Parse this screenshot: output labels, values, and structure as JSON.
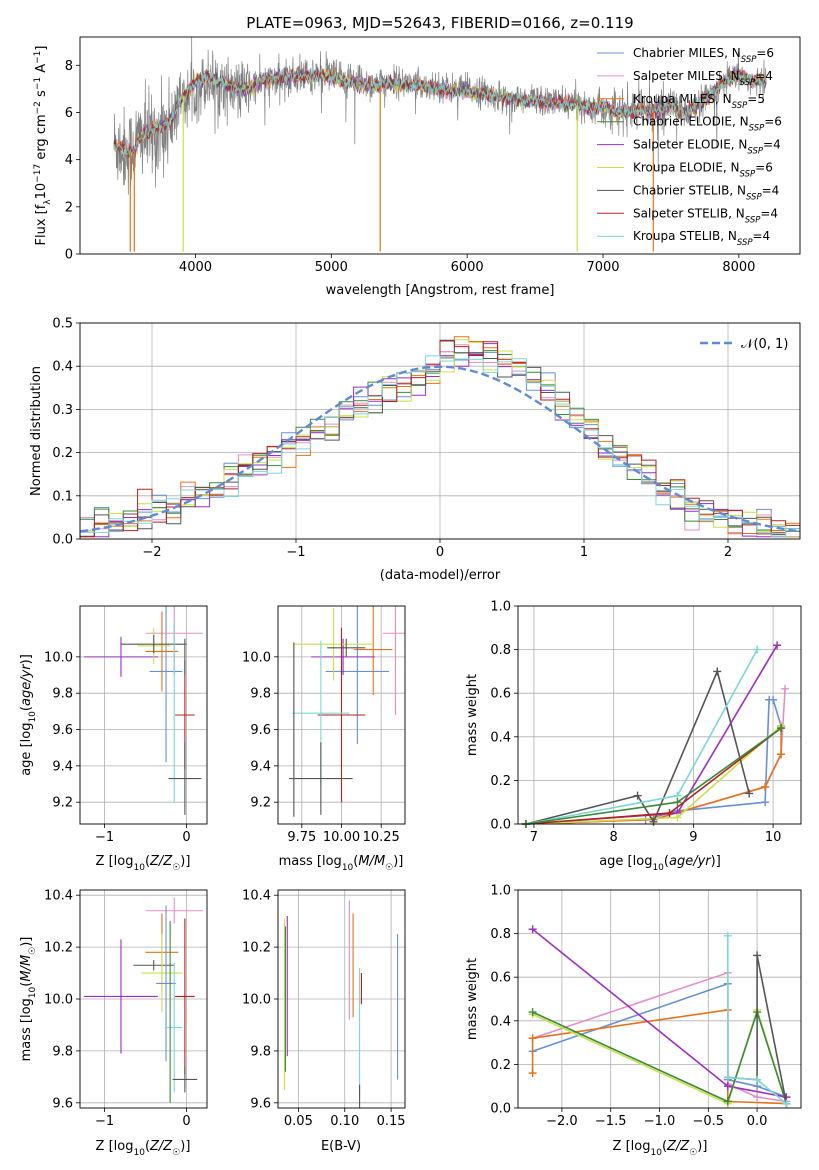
{
  "figure_title": "PLATE=0963, MJD=52643, FIBERID=0166, z=0.119",
  "colors": {
    "Chabrier MILES": "#6a8fd6",
    "Salpeter MILES": "#e58fc6",
    "Kroupa MILES": "#e3731a",
    "Chabrier ELODIE": "#3a8a3a",
    "Salpeter ELODIE": "#9b2fc2",
    "Kroupa ELODIE": "#c9e04a",
    "Chabrier STELIB": "#555555",
    "Salpeter STELIB": "#b22222",
    "Kroupa STELIB": "#7dd6d6"
  },
  "chart_data": [
    {
      "id": "spectrum",
      "type": "line",
      "title": "PLATE=0963, MJD=52643, FIBERID=0166, z=0.119",
      "xlabel": "wavelength [Angstrom, rest frame]",
      "ylabel": "Flux [f_λ 10^-17 erg cm^-2 s^-1 A^-1]",
      "xlim": [
        3150,
        8450
      ],
      "ylim": [
        0,
        9.2
      ],
      "xticks": [
        4000,
        5000,
        6000,
        7000,
        8000
      ],
      "yticks": [
        0,
        2,
        4,
        6,
        8
      ],
      "grid": false,
      "legend_position": "right",
      "legend": [
        {
          "pre": "Chabrier MILES, N",
          "post": "=6"
        },
        {
          "pre": "Salpeter MILES, N",
          "post": "=4"
        },
        {
          "pre": "Kroupa MILES, N",
          "post": "=5"
        },
        {
          "pre": "Chabrier ELODIE, N",
          "post": "=6"
        },
        {
          "pre": "Salpeter ELODIE, N",
          "post": "=4"
        },
        {
          "pre": "Kroupa ELODIE, N",
          "post": "=6"
        },
        {
          "pre": "Chabrier STELIB, N",
          "post": "=4"
        },
        {
          "pre": "Salpeter STELIB, N",
          "post": "=4"
        },
        {
          "pre": "Kroupa STELIB, N",
          "post": "=4"
        }
      ],
      "data_x": [
        3400,
        3450,
        3500,
        3550,
        3600,
        3700,
        3800,
        3900,
        4000,
        4100,
        4200,
        4300,
        4400,
        4500,
        4600,
        4700,
        4800,
        4900,
        5000,
        5100,
        5200,
        5300,
        5400,
        5500,
        5600,
        5700,
        5800,
        5900,
        6000,
        6100,
        6200,
        6300,
        6400,
        6500,
        6600,
        6700,
        6800,
        6900,
        7000,
        7100,
        7200,
        7300,
        7400,
        7500,
        7600,
        7700,
        7800,
        7900,
        8000,
        8100,
        8200
      ],
      "data_y": [
        4.7,
        4.5,
        4.3,
        4.6,
        5.0,
        5.0,
        5.5,
        6.5,
        7.0,
        7.4,
        7.2,
        6.9,
        7.0,
        7.3,
        7.3,
        7.4,
        7.6,
        7.5,
        7.6,
        7.3,
        7.4,
        7.2,
        7.3,
        7.3,
        7.2,
        7.2,
        7.1,
        7.0,
        7.0,
        6.9,
        6.7,
        6.6,
        6.5,
        6.6,
        6.5,
        6.4,
        6.4,
        6.2,
        6.3,
        6.0,
        6.1,
        6.2,
        6.1,
        6.4,
        6.0,
        6.2,
        6.8,
        7.3,
        7.6,
        7.2,
        7.5
      ],
      "model_y": [
        4.6,
        4.5,
        4.3,
        4.4,
        5.0,
        5.3,
        5.5,
        6.6,
        7.3,
        7.5,
        7.3,
        7.0,
        7.0,
        7.4,
        7.5,
        7.6,
        7.5,
        7.6,
        7.5,
        7.3,
        7.2,
        7.1,
        7.2,
        7.2,
        7.1,
        7.1,
        7.0,
        6.9,
        6.9,
        6.8,
        6.7,
        6.6,
        6.5,
        6.5,
        6.4,
        6.4,
        6.3,
        6.2,
        6.3,
        6.0,
        6.0,
        6.1,
        6.1,
        6.3,
        6.0,
        6.3,
        6.8,
        7.3,
        7.6,
        7.3,
        7.4
      ]
    },
    {
      "id": "residuals",
      "type": "histogram",
      "xlabel": "(data-model)/error",
      "ylabel": "Normed distribution",
      "xlim": [
        -2.5,
        2.5
      ],
      "ylim": [
        0,
        0.5
      ],
      "xticks": [
        -2,
        -1,
        0,
        1,
        2
      ],
      "yticks": [
        0,
        0.1,
        0.2,
        0.3,
        0.4,
        0.5
      ],
      "grid": true,
      "legend": "𝒩(0, 1)",
      "legend_position": "top-right"
    },
    {
      "id": "age_Z",
      "type": "errorbar",
      "xlabel": "Z [log10(Z/Z☉)]",
      "ylabel": "age [log10(age/yr)]",
      "xlim": [
        -1.3,
        0.25
      ],
      "ylim": [
        9.08,
        10.28
      ],
      "xticks": [
        -1,
        0
      ],
      "yticks": [
        9.2,
        9.4,
        9.6,
        9.8,
        10.0
      ],
      "grid": true,
      "points": [
        {
          "s": "Chabrier MILES",
          "x": -0.25,
          "xe": 0.2,
          "y": 9.92,
          "ye": 0.5
        },
        {
          "s": "Salpeter MILES",
          "x": -0.15,
          "xe": 0.35,
          "y": 10.13,
          "ye": 0.23
        },
        {
          "s": "Kroupa MILES",
          "x": -0.3,
          "xe": 0.2,
          "y": 10.03,
          "ye": 0.22
        },
        {
          "s": "Salpeter ELODIE",
          "x": -0.8,
          "xe": 0.45,
          "y": 10.0,
          "ye": 0.11
        },
        {
          "s": "Kroupa ELODIE",
          "x": -0.4,
          "xe": 0.2,
          "y": 10.06,
          "ye": 0.1
        },
        {
          "s": "Chabrier STELIB",
          "x": -0.4,
          "xe": 0.4,
          "y": 10.07,
          "ye": 0.05
        },
        {
          "s": "Salpeter STELIB",
          "x": -0.02,
          "xe": 0.12,
          "y": 9.68,
          "ye": 0.3
        },
        {
          "s": "Kroupa STELIB",
          "x": -0.15,
          "xe": 0.0,
          "y": 9.7,
          "ye": 0.5
        },
        {
          "s": "Chabrier STELIB",
          "x": -0.02,
          "xe": 0.2,
          "y": 9.33,
          "ye": 0.2
        },
        {
          "s": "Chabrier STELIB",
          "x": -0.02,
          "xe": 0.0,
          "y": 10.0,
          "ye": 0.1
        }
      ]
    },
    {
      "id": "age_mass",
      "type": "errorbar",
      "xlabel": "mass [log10(M/M☉)]",
      "ylabel": "",
      "xlim": [
        9.6,
        10.4
      ],
      "ylim": [
        9.08,
        10.28
      ],
      "xticks": [
        9.75,
        10.0,
        10.25
      ],
      "yticks": [
        9.2,
        9.4,
        9.6,
        9.8,
        10.0
      ],
      "grid": true,
      "points": [
        {
          "s": "Chabrier MILES",
          "x": 10.1,
          "xe": 0.2,
          "y": 9.92,
          "ye": 0.4
        },
        {
          "s": "Salpeter MILES",
          "x": 10.34,
          "xe": 0.08,
          "y": 10.13,
          "ye": 0.45
        },
        {
          "s": "Kroupa MILES",
          "x": 10.2,
          "xe": 0.12,
          "y": 10.04,
          "ye": 0.25
        },
        {
          "s": "Salpeter ELODIE",
          "x": 10.01,
          "xe": 0.2,
          "y": 10.0,
          "ye": 0.1
        },
        {
          "s": "Kroupa ELODIE",
          "x": 9.95,
          "xe": 0.25,
          "y": 10.07,
          "ye": 0.2
        },
        {
          "s": "Chabrier STELIB",
          "x": 10.03,
          "xe": 0.12,
          "y": 10.05,
          "ye": 0.05
        },
        {
          "s": "Salpeter STELIB",
          "x": 10.0,
          "xe": 0.15,
          "y": 9.68,
          "ye": 0.48
        },
        {
          "s": "Kroupa STELIB",
          "x": 9.87,
          "xe": 0.18,
          "y": 9.69,
          "ye": 0.4
        },
        {
          "s": "Chabrier STELIB",
          "x": 9.87,
          "xe": 0.2,
          "y": 9.33,
          "ye": 0.2
        },
        {
          "s": "Chabrier STELIB",
          "x": 9.7,
          "xe": 0.0,
          "y": 9.6,
          "ye": 0.48
        }
      ]
    },
    {
      "id": "weight_age",
      "type": "line",
      "xlabel": "age [log10(age/yr)]",
      "ylabel": "mass weight",
      "xlim": [
        6.8,
        10.35
      ],
      "ylim": [
        0,
        1
      ],
      "xticks": [
        7,
        8,
        9,
        10
      ],
      "yticks": [
        0,
        0.2,
        0.4,
        0.6,
        0.8,
        1.0
      ],
      "grid": true,
      "series": [
        {
          "s": "Chabrier MILES",
          "x": [
            6.9,
            8.4,
            8.8,
            9.9,
            9.95,
            10.0,
            10.1
          ],
          "y": [
            0.0,
            0.02,
            0.06,
            0.1,
            0.57,
            0.57,
            0.45
          ]
        },
        {
          "s": "Salpeter MILES",
          "x": [
            6.9,
            8.5,
            9.9,
            10.1,
            10.15
          ],
          "y": [
            0.0,
            0.02,
            0.17,
            0.32,
            0.62
          ]
        },
        {
          "s": "Kroupa MILES",
          "x": [
            6.9,
            8.5,
            9.9,
            10.1,
            10.1
          ],
          "y": [
            0.0,
            0.02,
            0.17,
            0.32,
            0.45
          ]
        },
        {
          "s": "Salpeter ELODIE",
          "x": [
            6.9,
            8.8,
            10.05
          ],
          "y": [
            0.0,
            0.05,
            0.82
          ]
        },
        {
          "s": "Kroupa ELODIE",
          "x": [
            6.9,
            8.8,
            10.1
          ],
          "y": [
            0.0,
            0.03,
            0.45
          ]
        },
        {
          "s": "Chabrier STELIB",
          "x": [
            6.9,
            8.3,
            8.5,
            9.3,
            9.7
          ],
          "y": [
            0.0,
            0.13,
            0.01,
            0.7,
            0.14
          ]
        },
        {
          "s": "Salpeter STELIB",
          "x": [
            6.9,
            8.7,
            10.1
          ],
          "y": [
            0.0,
            0.05,
            0.44
          ]
        },
        {
          "s": "Kroupa STELIB",
          "x": [
            6.9,
            8.8,
            9.8
          ],
          "y": [
            0.0,
            0.13,
            0.8
          ]
        },
        {
          "s": "Chabrier ELODIE",
          "x": [
            6.9,
            8.8,
            10.1
          ],
          "y": [
            0.0,
            0.1,
            0.44
          ]
        }
      ]
    },
    {
      "id": "mass_Z",
      "type": "errorbar",
      "xlabel": "Z [log10(Z/Z☉)]",
      "ylabel": "mass [log10(M/M☉)]",
      "xlim": [
        -1.3,
        0.25
      ],
      "ylim": [
        9.58,
        10.42
      ],
      "xticks": [
        -1,
        0
      ],
      "yticks": [
        9.6,
        9.8,
        10.0,
        10.2,
        10.4
      ],
      "grid": true,
      "points": [
        {
          "s": "Salpeter MILES",
          "x": -0.15,
          "xe": 0.35,
          "y": 10.34,
          "ye": 0.05
        },
        {
          "s": "Kroupa MILES",
          "x": -0.3,
          "xe": 0.2,
          "y": 10.18,
          "ye": 0.15
        },
        {
          "s": "Chabrier STELIB",
          "x": -0.4,
          "xe": 0.25,
          "y": 10.13,
          "ye": 0.02
        },
        {
          "s": "Kroupa ELODIE",
          "x": -0.3,
          "xe": 0.25,
          "y": 10.1,
          "ye": 0.15
        },
        {
          "s": "Chabrier MILES",
          "x": -0.25,
          "xe": 0.12,
          "y": 10.06,
          "ye": 0.3
        },
        {
          "s": "Salpeter ELODIE",
          "x": -0.8,
          "xe": 0.45,
          "y": 10.01,
          "ye": 0.22
        },
        {
          "s": "Salpeter STELIB",
          "x": -0.02,
          "xe": 0.12,
          "y": 10.01,
          "ye": 0.3
        },
        {
          "s": "Kroupa STELIB",
          "x": -0.15,
          "xe": 0.1,
          "y": 9.89,
          "ye": 0.25
        },
        {
          "s": "Chabrier STELIB",
          "x": -0.02,
          "xe": 0.15,
          "y": 9.69,
          "ye": 0.05
        },
        {
          "s": "Chabrier ELODIE",
          "x": -0.2,
          "xe": 0.0,
          "y": 9.95,
          "ye": 0.35
        }
      ]
    },
    {
      "id": "mass_EBV",
      "type": "errorbar",
      "xlabel": "E(B-V)",
      "ylabel": "",
      "xlim": [
        0.028,
        0.165
      ],
      "ylim": [
        9.58,
        10.42
      ],
      "xticks": [
        0.05,
        0.1,
        0.15
      ],
      "yticks": [
        9.6,
        9.8,
        10.0,
        10.2,
        10.4
      ],
      "grid": true,
      "points": [
        {
          "s": "Chabrier MILES",
          "x": 0.157,
          "xe": 0.0,
          "y": 9.97,
          "ye": 0.28
        },
        {
          "s": "Salpeter MILES",
          "x": 0.105,
          "xe": 0.0,
          "y": 10.15,
          "ye": 0.23
        },
        {
          "s": "Kroupa MILES",
          "x": 0.109,
          "xe": 0.0,
          "y": 10.13,
          "ye": 0.2
        },
        {
          "s": "Salpeter ELODIE",
          "x": 0.038,
          "xe": 0.0,
          "y": 10.05,
          "ye": 0.27
        },
        {
          "s": "Kroupa ELODIE",
          "x": 0.035,
          "xe": 0.0,
          "y": 9.98,
          "ye": 0.33
        },
        {
          "s": "Salpeter STELIB",
          "x": 0.118,
          "xe": 0.0,
          "y": 10.04,
          "ye": 0.06
        },
        {
          "s": "Kroupa STELIB",
          "x": 0.116,
          "xe": 0.0,
          "y": 9.87,
          "ye": 0.25
        },
        {
          "s": "Chabrier STELIB",
          "x": 0.116,
          "xe": 0.0,
          "y": 9.62,
          "ye": 0.05
        },
        {
          "s": "Chabrier ELODIE",
          "x": 0.036,
          "xe": 0.0,
          "y": 10.0,
          "ye": 0.28
        }
      ]
    },
    {
      "id": "weight_Z",
      "type": "line",
      "xlabel": "Z [log10(Z/Z☉)]",
      "ylabel": "mass weight",
      "xlim": [
        -2.45,
        0.45
      ],
      "ylim": [
        0,
        1
      ],
      "xticks": [
        -2.0,
        -1.5,
        -1.0,
        -0.5,
        0.0
      ],
      "yticks": [
        0,
        0.2,
        0.4,
        0.6,
        0.8,
        1.0
      ],
      "grid": true,
      "series": [
        {
          "s": "Chabrier MILES",
          "x": [
            -2.3,
            -0.3,
            -0.3,
            0.0,
            0.3
          ],
          "y": [
            0.26,
            0.57,
            0.13,
            0.1,
            0.05
          ]
        },
        {
          "s": "Salpeter MILES",
          "x": [
            -2.3,
            -0.3,
            -0.3,
            0.0,
            0.3
          ],
          "y": [
            0.32,
            0.62,
            0.11,
            0.05,
            0.03
          ]
        },
        {
          "s": "Kroupa MILES",
          "x": [
            -2.3,
            -2.3,
            -0.3,
            -0.3,
            0.3
          ],
          "y": [
            0.16,
            0.32,
            0.45,
            0.03,
            0.02
          ]
        },
        {
          "s": "Salpeter ELODIE",
          "x": [
            -2.3,
            -0.3,
            0.3
          ],
          "y": [
            0.82,
            0.1,
            0.05
          ]
        },
        {
          "s": "Kroupa ELODIE",
          "x": [
            -2.3,
            -0.3,
            0.0,
            0.3
          ],
          "y": [
            0.43,
            0.02,
            0.45,
            0.02
          ]
        },
        {
          "s": "Chabrier ELODIE",
          "x": [
            -2.3,
            -0.3,
            0.0,
            0.3
          ],
          "y": [
            0.44,
            0.03,
            0.44,
            0.02
          ]
        },
        {
          "s": "Chabrier STELIB",
          "x": [
            -0.3,
            0.0,
            0.0,
            0.3
          ],
          "y": [
            0.14,
            0.13,
            0.7,
            0.02
          ]
        },
        {
          "s": "Kroupa STELIB",
          "x": [
            -0.3,
            -0.3,
            0.0,
            0.3
          ],
          "y": [
            0.79,
            0.14,
            0.13,
            0.02
          ]
        }
      ]
    }
  ]
}
